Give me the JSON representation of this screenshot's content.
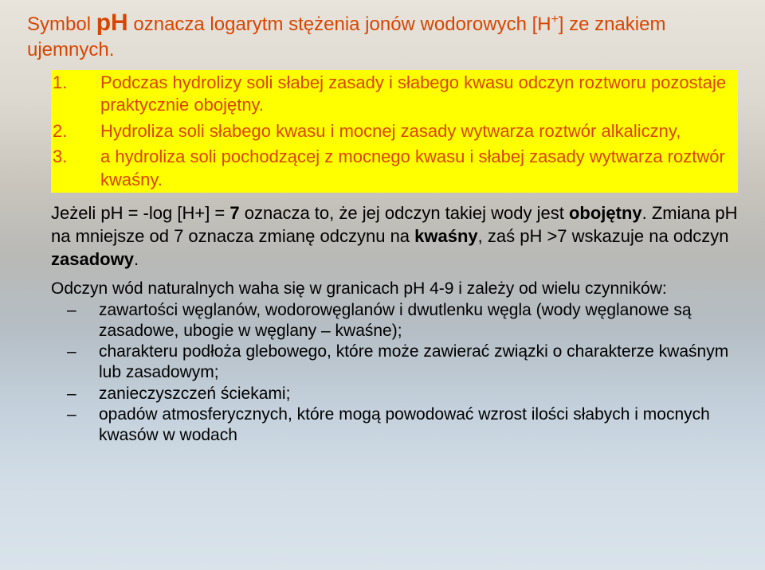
{
  "colors": {
    "accent": "#d94400",
    "highlight_bg": "#ffff00",
    "body_text": "#000000",
    "bg_gradient": [
      "#e8e4dc",
      "#dcd8cf",
      "#c9c5bd",
      "#b9b9b6",
      "#b5bec5",
      "#c4d1dc",
      "#d2dde6",
      "#dae3ea"
    ]
  },
  "intro": {
    "pre": "Symbol  ",
    "ph": "pH",
    "post1": "  oznacza logarytm stężenia jonów wodorowych  [H",
    "sup": "+",
    "post2": "]  ze znakiem  ujemnych."
  },
  "highlights": [
    {
      "num": "1.",
      "text": "Podczas hydrolizy soli słabej zasady i słabego kwasu odczyn roztworu pozostaje praktycznie obojętny."
    },
    {
      "num": "2.",
      "text": "Hydroliza soli słabego kwasu i mocnej zasady wytwarza roztwór alkaliczny,"
    },
    {
      "num": "3.",
      "text": "a hydroliza soli  pochodzącej z mocnego kwasu i słabej zasady wytwarza roztwór kwaśny."
    }
  ],
  "mid": {
    "p1a": "Jeżeli pH = -log [H+]  = ",
    "p1b": "7",
    "p1c": " oznacza to, że jej odczyn takiej wody jest ",
    "p1d": "obojętny",
    "p1e": ". Zmiana pH na mniejsze od 7 oznacza zmianę odczynu na ",
    "p1f": "kwaśny",
    "p1g": ", zaś pH >7 wskazuje na odczyn ",
    "p1h": "zasadowy",
    "p1i": "."
  },
  "bottom_lead": "Odczyn wód naturalnych waha się w granicach pH 4-9 i zależy od wielu czynników:",
  "bullets": [
    "zawartości węglanów, wodorowęglanów i dwutlenku węgla (wody węglanowe są zasadowe, ubogie w węglany – kwaśne);",
    "charakteru podłoża glebowego, które może zawierać związki o charakterze kwaśnym lub zasadowym;",
    "zanieczyszczeń ściekami;",
    "opadów atmosferycznych, które mogą powodować wzrost ilości słabych i mocnych kwasów w wodach"
  ],
  "dash": "–"
}
